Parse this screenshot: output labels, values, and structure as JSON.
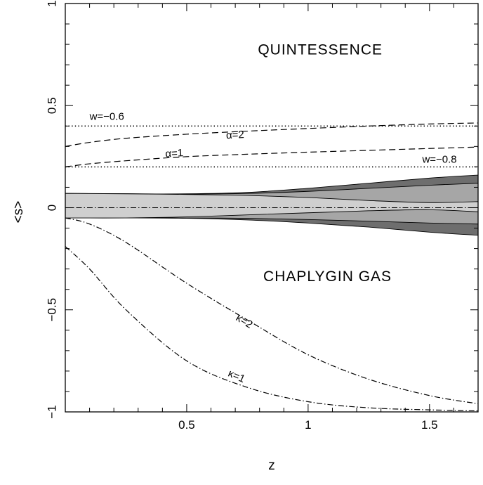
{
  "chart_data": {
    "type": "line",
    "title": "",
    "xlabel": "z",
    "ylabel": "<s>",
    "xlim": [
      0,
      1.7
    ],
    "ylim": [
      -1,
      1
    ],
    "xticks": [
      0.5,
      1,
      1.5
    ],
    "xtick_labels": [
      "0.5",
      "1",
      "1.5"
    ],
    "yticks": [
      -1,
      -0.5,
      0,
      0.5,
      1
    ],
    "ytick_labels": [
      "−1",
      "−0.5",
      "0",
      "0.5",
      "1"
    ],
    "grid": false,
    "region_labels": [
      {
        "text": "QUINTESSENCE",
        "x": 1.05,
        "y": 0.75
      },
      {
        "text": "CHAPLYGIN GAS",
        "x": 1.08,
        "y": -0.36
      }
    ],
    "bands": [
      {
        "name": "outer",
        "color": "#6e6e6e",
        "x": [
          0,
          0.25,
          0.5,
          0.75,
          1.0,
          1.25,
          1.5,
          1.7
        ],
        "upper": [
          0.07,
          0.068,
          0.068,
          0.075,
          0.095,
          0.12,
          0.145,
          0.16
        ],
        "lower": [
          -0.05,
          -0.05,
          -0.052,
          -0.06,
          -0.075,
          -0.095,
          -0.12,
          -0.135
        ]
      },
      {
        "name": "middle",
        "color": "#a6a6a6",
        "x": [
          0,
          0.25,
          0.5,
          0.75,
          1.0,
          1.25,
          1.5,
          1.7
        ],
        "upper": [
          0.07,
          0.068,
          0.067,
          0.07,
          0.08,
          0.095,
          0.11,
          0.12
        ],
        "lower": [
          -0.05,
          -0.05,
          -0.05,
          -0.052,
          -0.058,
          -0.066,
          -0.075,
          -0.08
        ]
      },
      {
        "name": "inner",
        "color": "#cfcfcf",
        "x": [
          0,
          0.25,
          0.5,
          0.75,
          1.0,
          1.25,
          1.5,
          1.7
        ],
        "upper": [
          0.07,
          0.068,
          0.065,
          0.06,
          0.05,
          0.035,
          0.025,
          0.03
        ],
        "lower": [
          -0.05,
          -0.05,
          -0.045,
          -0.035,
          -0.025,
          -0.015,
          -0.01,
          -0.02
        ]
      }
    ],
    "reference_lines": [
      {
        "label": "w=−0.6",
        "y": 0.4,
        "style": "dotted",
        "label_x": 0.1,
        "label_y": 0.43
      },
      {
        "label": "w=−0.8",
        "y": 0.2,
        "style": "dotted",
        "label_x": 1.47,
        "label_y": 0.22
      }
    ],
    "series": [
      {
        "label": "α=2",
        "style": "dashed",
        "x": [
          0,
          0.1,
          0.25,
          0.5,
          0.75,
          1.0,
          1.25,
          1.5,
          1.7
        ],
        "y": [
          0.3,
          0.32,
          0.34,
          0.36,
          0.375,
          0.388,
          0.4,
          0.41,
          0.415
        ],
        "label_x": 0.7,
        "label_y": 0.34
      },
      {
        "label": "α=1",
        "style": "dashed",
        "x": [
          0,
          0.1,
          0.25,
          0.5,
          0.75,
          1.0,
          1.25,
          1.5,
          1.7
        ],
        "y": [
          0.2,
          0.215,
          0.23,
          0.25,
          0.262,
          0.272,
          0.281,
          0.29,
          0.297
        ],
        "label_x": 0.45,
        "label_y": 0.25
      },
      {
        "label": "κ=2",
        "style": "dashdot",
        "x": [
          0,
          0.1,
          0.25,
          0.5,
          0.75,
          1.0,
          1.25,
          1.5,
          1.7
        ],
        "y": [
          -0.05,
          -0.08,
          -0.17,
          -0.37,
          -0.55,
          -0.72,
          -0.84,
          -0.92,
          -0.96
        ],
        "label_x": 0.73,
        "label_y": -0.57
      },
      {
        "label": "κ=1",
        "style": "dashdot",
        "x": [
          0,
          0.1,
          0.25,
          0.5,
          0.75,
          1.0,
          1.25,
          1.5,
          1.7
        ],
        "y": [
          -0.19,
          -0.3,
          -0.5,
          -0.75,
          -0.88,
          -0.95,
          -0.98,
          -0.99,
          -0.995
        ],
        "label_x": 0.7,
        "label_y": -0.84
      }
    ],
    "center_line": {
      "y": 0,
      "style": "dashdot"
    }
  }
}
